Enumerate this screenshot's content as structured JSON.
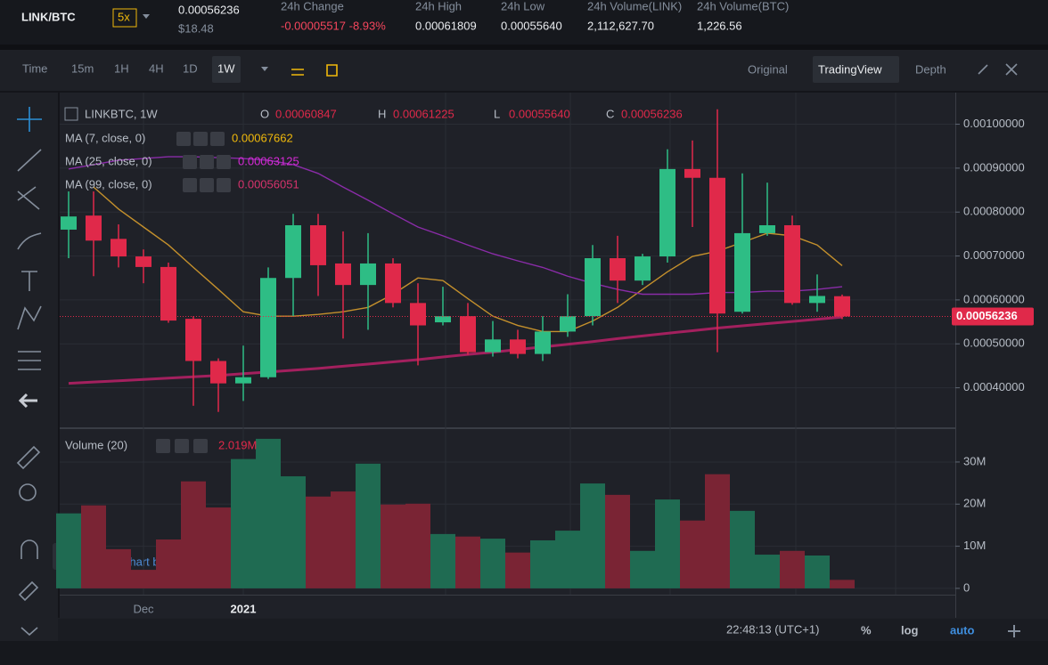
{
  "header": {
    "pair": "LINK/BTC",
    "leverage": "5x",
    "price": "0.00056236",
    "price_usd": "$18.48",
    "stats": [
      {
        "label": "24h Change",
        "value": "-0.00005517 -8.93%"
      },
      {
        "label": "24h High",
        "value": "0.00061809"
      },
      {
        "label": "24h Low",
        "value": "0.00055640"
      },
      {
        "label": "24h Volume(LINK)",
        "value": "2,112,627.70"
      },
      {
        "label": "24h Volume(BTC)",
        "value": "1,226.56"
      }
    ]
  },
  "toolbar": {
    "intervals": [
      "Time",
      "15m",
      "1H",
      "4H",
      "1D",
      "1W"
    ],
    "views": [
      "Original",
      "TradingView",
      "Depth"
    ]
  },
  "chart_data": {
    "type": "candlestick",
    "title": "LINKBTC, 1W",
    "ohlc_legend": [
      {
        "key": "O",
        "value": "0.00060847"
      },
      {
        "key": "H",
        "value": "0.00061225"
      },
      {
        "key": "L",
        "value": "0.00055640"
      },
      {
        "key": "C",
        "value": "0.00056236"
      }
    ],
    "categories": [
      null,
      null,
      null,
      "Dec",
      null,
      null,
      null,
      "2021",
      null,
      null,
      null,
      null,
      null,
      null,
      null,
      null,
      null,
      null,
      null,
      null,
      null,
      null,
      null,
      null,
      null,
      null,
      null,
      null,
      null,
      null,
      null,
      null
    ],
    "open": [
      0.00076,
      0.000792,
      0.000739,
      0.000699,
      0.000675,
      0.000557,
      0.000461,
      0.00041,
      0.000424,
      0.00065,
      0.00077,
      0.000683,
      0.000634,
      0.000683,
      0.000593,
      0.000549,
      0.000563,
      0.000481,
      0.00051,
      0.000477,
      0.000528,
      0.000563,
      0.000695,
      0.000644,
      0.000699,
      0.000898,
      0.000878,
      0.000573,
      0.000752,
      0.00077,
      0.000593,
      0.00060847
    ],
    "high": [
      0.000847,
      0.000847,
      0.000772,
      0.000715,
      0.000685,
      0.000563,
      0.000467,
      0.000496,
      0.000674,
      0.000796,
      0.000796,
      0.000756,
      0.000752,
      0.000695,
      0.000638,
      0.00063,
      0.000593,
      0.000552,
      0.000532,
      0.000563,
      0.000613,
      0.000725,
      0.000746,
      0.000705,
      0.000943,
      0.000963,
      0.001034,
      0.000888,
      0.000867,
      0.000792,
      0.000658,
      0.00061225
    ],
    "low": [
      0.000695,
      0.000654,
      0.000674,
      0.000638,
      0.000548,
      0.000359,
      0.000345,
      0.00037,
      0.00042,
      0.000563,
      0.000609,
      0.000512,
      0.000532,
      0.000583,
      0.000451,
      0.000542,
      0.000475,
      0.000471,
      0.000467,
      0.000461,
      0.000516,
      0.000542,
      0.000593,
      0.000634,
      0.000685,
      0.000766,
      0.000481,
      0.000569,
      0.000746,
      0.000589,
      0.000573,
      0.0005564
    ],
    "close": [
      0.00079,
      0.000735,
      0.000699,
      0.000675,
      0.000553,
      0.000461,
      0.00041,
      0.000424,
      0.00065,
      0.00077,
      0.000679,
      0.000634,
      0.000683,
      0.000593,
      0.000542,
      0.000563,
      0.000481,
      0.00051,
      0.000477,
      0.000528,
      0.000563,
      0.000695,
      0.000644,
      0.000699,
      0.000898,
      0.000878,
      0.000569,
      0.000752,
      0.00077,
      0.000593,
      0.000609,
      0.00056236
    ],
    "up_color": "#2ebd85",
    "down_color": "#e0294a",
    "series": [
      {
        "name": "MA (7, close, 0)",
        "legend_value": "0.00067662",
        "color": "#c4902c",
        "legend_color": "#f0b90b",
        "values": [
          null,
          0.000857,
          0.000807,
          0.000766,
          0.000725,
          0.000674,
          0.000624,
          0.000573,
          0.000563,
          0.000563,
          0.000567,
          0.000573,
          0.000583,
          0.000613,
          0.00065,
          0.000644,
          0.000603,
          0.000563,
          0.000542,
          0.000528,
          0.000528,
          0.000552,
          0.000583,
          0.000624,
          0.000664,
          0.000699,
          0.000711,
          0.000731,
          0.000752,
          0.000746,
          0.000725,
          0.000678
        ]
      },
      {
        "name": "MA (25, close, 0)",
        "legend_value": "0.00063125",
        "color": "#8a2ca8",
        "legend_color": "#d62ad6",
        "values": [
          0.000898,
          0.000908,
          0.000918,
          0.000922,
          0.000926,
          0.000926,
          0.000924,
          0.000922,
          0.000918,
          0.000908,
          0.000888,
          0.000857,
          0.000827,
          0.000796,
          0.000766,
          0.000746,
          0.000725,
          0.000705,
          0.000689,
          0.000674,
          0.000654,
          0.000638,
          0.000624,
          0.000613,
          0.000613,
          0.000613,
          0.000617,
          0.000617,
          0.00062,
          0.00062,
          0.000624,
          0.00063
        ]
      },
      {
        "name": "MA (99, close, 0)",
        "legend_value": "0.00056051",
        "color": "#a3205e",
        "legend_color": "#d6336c",
        "values": [
          0.00041,
          0.000413,
          0.000416,
          0.000419,
          0.000422,
          0.000425,
          0.000428,
          0.000432,
          0.000436,
          0.00044,
          0.000444,
          0.000449,
          0.000454,
          0.000459,
          0.000464,
          0.00047,
          0.000476,
          0.000481,
          0.000487,
          0.000493,
          0.000499,
          0.000505,
          0.000512,
          0.000518,
          0.000524,
          0.00053,
          0.000536,
          0.000541,
          0.000546,
          0.000551,
          0.000556,
          0.000561
        ]
      }
    ],
    "ylim": [
      0.00031,
      0.00107
    ],
    "yticks": [
      {
        "value": 0.0004,
        "label": "0.00040000"
      },
      {
        "value": 0.0005,
        "label": "0.00050000"
      },
      {
        "value": 0.0006,
        "label": "0.00060000"
      },
      {
        "value": 0.0007,
        "label": "0.00070000"
      },
      {
        "value": 0.0008,
        "label": "0.00080000"
      },
      {
        "value": 0.0009,
        "label": "0.00090000"
      },
      {
        "value": 0.001,
        "label": "0.00100000"
      }
    ],
    "price_tag": "0.00056236",
    "volume": {
      "name": "Volume (20)",
      "legend_value": "2.019M",
      "up_color": "#1f6b52",
      "down_color": "#7a2434",
      "values": [
        17800000,
        19700000,
        9300000,
        4400000,
        11600000,
        25400000,
        19200000,
        30700000,
        35500000,
        26600000,
        21800000,
        23000000,
        29600000,
        19900000,
        20100000,
        12900000,
        12300000,
        11800000,
        8500000,
        11400000,
        13700000,
        24900000,
        22200000,
        8900000,
        21100000,
        16100000,
        27100000,
        18400000,
        8000000,
        8900000,
        7800000,
        2019000
      ],
      "ylim": [
        -1500000,
        37600000
      ],
      "yticks": [
        0,
        {
          "value": 10000000,
          "label": "10M"
        },
        {
          "value": 20000000,
          "label": "20M"
        },
        {
          "value": 30000000,
          "label": "30M"
        }
      ]
    },
    "watermark": "Chart by TradingView"
  },
  "footer": {
    "clock": "22:48:13 (UTC+1)",
    "options": [
      "%",
      "log",
      "auto"
    ]
  }
}
